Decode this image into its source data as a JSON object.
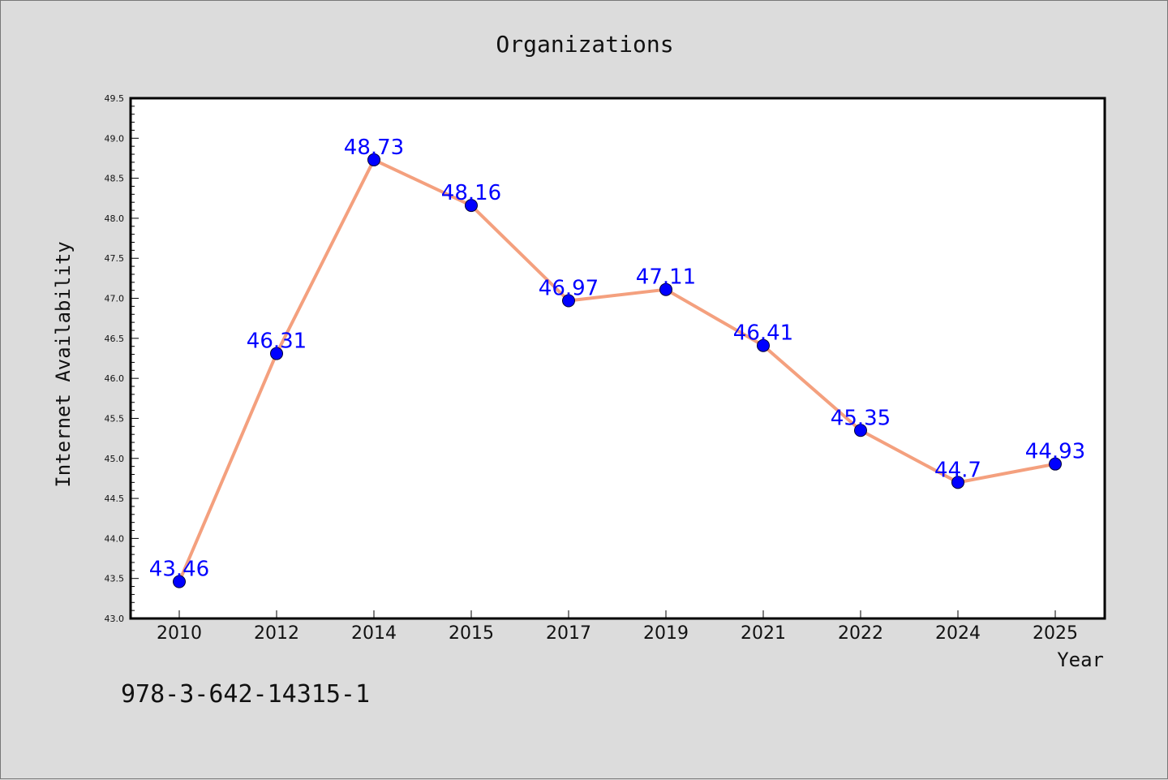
{
  "chart_data": {
    "type": "line",
    "title": "Organizations",
    "xlabel": "Year",
    "ylabel": "Internet Availability",
    "categories": [
      "2010",
      "2012",
      "2014",
      "2015",
      "2017",
      "2019",
      "2021",
      "2022",
      "2024",
      "2025"
    ],
    "values": [
      43.46,
      46.31,
      48.73,
      48.16,
      46.97,
      47.11,
      46.41,
      45.35,
      44.7,
      44.93
    ],
    "data_labels": [
      "43.46",
      "46.31",
      "48.73",
      "48.16",
      "46.97",
      "47.11",
      "46.41",
      "45.35",
      "44.7",
      "44.93"
    ],
    "ylim": [
      43.0,
      49.5
    ],
    "yticks": [
      "43.0",
      "43.5",
      "44.0",
      "44.5",
      "45.0",
      "45.5",
      "46.0",
      "46.5",
      "47.0",
      "47.5",
      "48.0",
      "48.5",
      "49.0",
      "49.5"
    ],
    "grid": false,
    "line_color": "#f4a07e",
    "marker_color": "#0000ff"
  },
  "footer_text": "978-3-642-14315-1"
}
